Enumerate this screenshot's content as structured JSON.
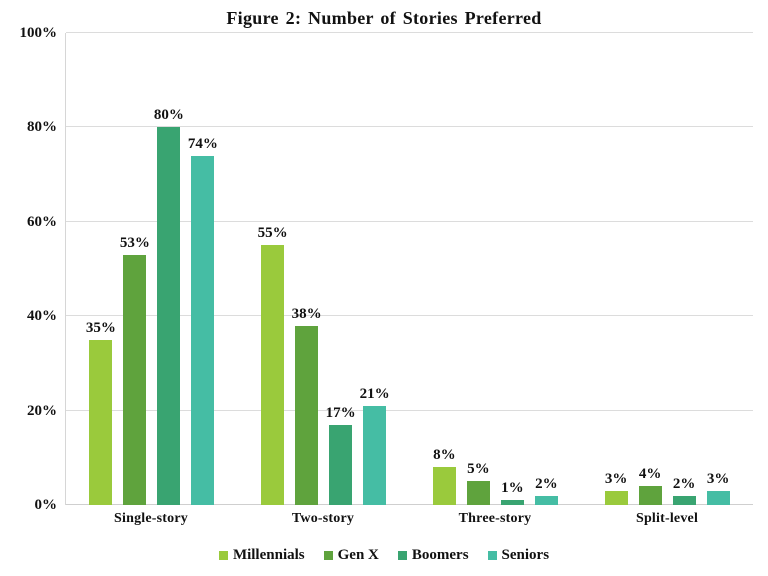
{
  "chart_data": {
    "type": "bar",
    "title": "Figure 2: Number of Stories Preferred",
    "categories": [
      "Single-story",
      "Two-story",
      "Three-story",
      "Split-level"
    ],
    "series": [
      {
        "name": "Millennials",
        "color": "#9aca3c",
        "values": [
          35,
          55,
          8,
          3
        ]
      },
      {
        "name": "Gen X",
        "color": "#5fa33d",
        "values": [
          53,
          38,
          5,
          4
        ]
      },
      {
        "name": "Boomers",
        "color": "#39a471",
        "values": [
          80,
          17,
          1,
          2
        ]
      },
      {
        "name": "Seniors",
        "color": "#45bda4",
        "values": [
          74,
          21,
          2,
          3
        ]
      }
    ],
    "value_suffix": "%",
    "xlabel": "",
    "ylabel": "",
    "ylim": [
      0,
      100
    ],
    "yticks": [
      0,
      20,
      40,
      60,
      80,
      100
    ],
    "ytick_suffix": "%",
    "grid": true,
    "legend_position": "bottom"
  },
  "colors": {
    "background": "#ffffff",
    "text": "#111111",
    "gridline": "#dcdcdc",
    "axis_line": "#d6d6d6"
  }
}
